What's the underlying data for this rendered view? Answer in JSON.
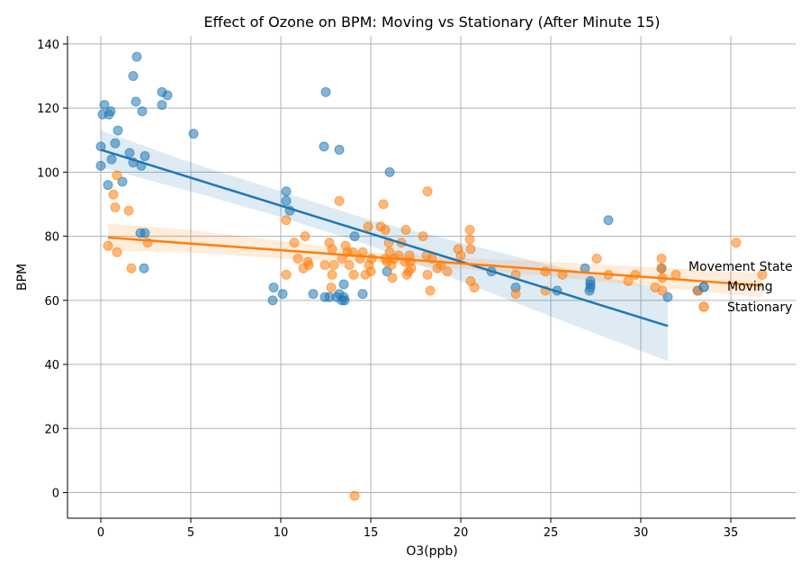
{
  "chart_data": {
    "type": "scatter",
    "title": "Effect of Ozone on BPM: Moving vs Stationary (After Minute 15)",
    "xlabel": "O3(ppb)",
    "ylabel": "BPM",
    "xlim": [
      -1.85,
      38.6
    ],
    "ylim": [
      -8,
      142.5
    ],
    "xticks": [
      0,
      5,
      10,
      15,
      20,
      25,
      30,
      35
    ],
    "yticks": [
      0,
      20,
      40,
      60,
      80,
      100,
      120,
      140
    ],
    "grid": true,
    "legend": {
      "title": "Movement State",
      "placement": "right",
      "entries": [
        "Moving",
        "Stationary"
      ]
    },
    "series": [
      {
        "name": "Moving",
        "color": "#1f77b4",
        "points": [
          [
            0,
            108
          ],
          [
            0,
            102
          ],
          [
            0.2,
            121
          ],
          [
            0.1,
            118
          ],
          [
            0.45,
            118
          ],
          [
            0.55,
            119
          ],
          [
            0.95,
            113
          ],
          [
            0.8,
            109
          ],
          [
            0.6,
            104
          ],
          [
            0.4,
            96
          ],
          [
            1.2,
            97
          ],
          [
            1.6,
            106
          ],
          [
            1.8,
            103
          ],
          [
            2.25,
            102
          ],
          [
            2.45,
            105
          ],
          [
            1.8,
            130
          ],
          [
            2.0,
            136
          ],
          [
            1.95,
            122
          ],
          [
            2.3,
            119
          ],
          [
            3.4,
            125
          ],
          [
            3.7,
            124
          ],
          [
            3.4,
            121
          ],
          [
            5.15,
            112
          ],
          [
            2.2,
            81
          ],
          [
            2.45,
            81
          ],
          [
            2.4,
            70
          ],
          [
            10.3,
            94
          ],
          [
            10.3,
            91
          ],
          [
            10.5,
            88
          ],
          [
            9.55,
            60
          ],
          [
            9.6,
            64
          ],
          [
            10.1,
            62
          ],
          [
            12.5,
            125
          ],
          [
            12.4,
            108
          ],
          [
            13.25,
            107
          ],
          [
            16.05,
            100
          ],
          [
            14.1,
            80
          ],
          [
            11.8,
            62
          ],
          [
            12.45,
            61
          ],
          [
            12.7,
            61
          ],
          [
            13.1,
            61
          ],
          [
            13.25,
            62
          ],
          [
            13.5,
            61
          ],
          [
            13.4,
            60
          ],
          [
            13.55,
            60
          ],
          [
            13.5,
            65
          ],
          [
            14.55,
            62
          ],
          [
            15.9,
            69
          ],
          [
            21.7,
            69
          ],
          [
            23.05,
            64
          ],
          [
            25.35,
            63
          ],
          [
            26.9,
            70
          ],
          [
            27.2,
            66
          ],
          [
            27.2,
            65
          ],
          [
            27.2,
            64
          ],
          [
            27.15,
            63
          ],
          [
            28.2,
            85
          ],
          [
            31.15,
            70
          ],
          [
            31.5,
            61
          ],
          [
            33.15,
            63
          ]
        ],
        "fit": {
          "x": [
            0,
            31.5
          ],
          "y": [
            107,
            52
          ]
        },
        "ci": [
          [
            0,
            101.5,
            113
          ],
          [
            5,
            94,
            103
          ],
          [
            10,
            86,
            94
          ],
          [
            15,
            77,
            85
          ],
          [
            20,
            66,
            78
          ],
          [
            25,
            55,
            71
          ],
          [
            31.5,
            41,
            63
          ]
        ]
      },
      {
        "name": "Stationary",
        "color": "#ff7f0e",
        "points": [
          [
            0.4,
            77
          ],
          [
            0.7,
            93
          ],
          [
            0.8,
            89
          ],
          [
            0.9,
            99
          ],
          [
            0.9,
            75
          ],
          [
            1.55,
            88
          ],
          [
            1.7,
            70
          ],
          [
            2.6,
            78
          ],
          [
            10.3,
            85
          ],
          [
            10.3,
            68
          ],
          [
            10.75,
            78
          ],
          [
            10.95,
            73
          ],
          [
            11.25,
            70
          ],
          [
            11.35,
            80
          ],
          [
            11.5,
            72
          ],
          [
            11.55,
            71
          ],
          [
            13.25,
            91
          ],
          [
            12.45,
            71
          ],
          [
            12.7,
            78
          ],
          [
            12.85,
            76
          ],
          [
            12.8,
            64
          ],
          [
            12.85,
            68
          ],
          [
            12.95,
            71
          ],
          [
            13.4,
            73
          ],
          [
            13.6,
            77
          ],
          [
            13.7,
            75
          ],
          [
            13.8,
            71
          ],
          [
            14.0,
            75
          ],
          [
            14.05,
            68
          ],
          [
            14.1,
            -1
          ],
          [
            14.4,
            73
          ],
          [
            14.55,
            75
          ],
          [
            14.7,
            68
          ],
          [
            14.85,
            83
          ],
          [
            14.9,
            71
          ],
          [
            15.0,
            69
          ],
          [
            15.05,
            73
          ],
          [
            15.55,
            83
          ],
          [
            15.7,
            90
          ],
          [
            15.8,
            82
          ],
          [
            15.8,
            73
          ],
          [
            15.9,
            72
          ],
          [
            16.0,
            78
          ],
          [
            16.05,
            75
          ],
          [
            16.15,
            71
          ],
          [
            16.2,
            67
          ],
          [
            16.3,
            73
          ],
          [
            16.55,
            74
          ],
          [
            16.7,
            78
          ],
          [
            16.9,
            72
          ],
          [
            16.95,
            82
          ],
          [
            17.0,
            68
          ],
          [
            17.1,
            69
          ],
          [
            17.15,
            74
          ],
          [
            17.2,
            72
          ],
          [
            17.25,
            70
          ],
          [
            17.9,
            80
          ],
          [
            18.15,
            94
          ],
          [
            18.1,
            74
          ],
          [
            18.15,
            68
          ],
          [
            18.3,
            63
          ],
          [
            18.4,
            73
          ],
          [
            18.7,
            70
          ],
          [
            18.9,
            71
          ],
          [
            19.25,
            69
          ],
          [
            19.85,
            76
          ],
          [
            20.0,
            74
          ],
          [
            20.5,
            82
          ],
          [
            20.5,
            79
          ],
          [
            20.55,
            76
          ],
          [
            20.55,
            66
          ],
          [
            20.75,
            64
          ],
          [
            23.05,
            68
          ],
          [
            23.05,
            62
          ],
          [
            24.7,
            69
          ],
          [
            24.7,
            63
          ],
          [
            25.65,
            68
          ],
          [
            27.55,
            73
          ],
          [
            28.2,
            68
          ],
          [
            29.3,
            66
          ],
          [
            29.7,
            68
          ],
          [
            30.8,
            64
          ],
          [
            31.15,
            73
          ],
          [
            31.15,
            70
          ],
          [
            31.2,
            67
          ],
          [
            31.2,
            63
          ],
          [
            31.95,
            68
          ],
          [
            33.2,
            63
          ],
          [
            35.3,
            78
          ],
          [
            36.75,
            68
          ]
        ],
        "fit": {
          "x": [
            0.4,
            36.75
          ],
          "y": [
            79.6,
            64.6
          ]
        },
        "ci": [
          [
            0.4,
            75.5,
            84
          ],
          [
            5,
            75,
            82
          ],
          [
            10,
            73,
            78.5
          ],
          [
            15,
            71.8,
            75
          ],
          [
            20,
            69.8,
            73.2
          ],
          [
            25,
            67.5,
            72
          ],
          [
            30,
            64.5,
            70.5
          ],
          [
            36.75,
            61,
            68.5
          ]
        ]
      }
    ]
  }
}
